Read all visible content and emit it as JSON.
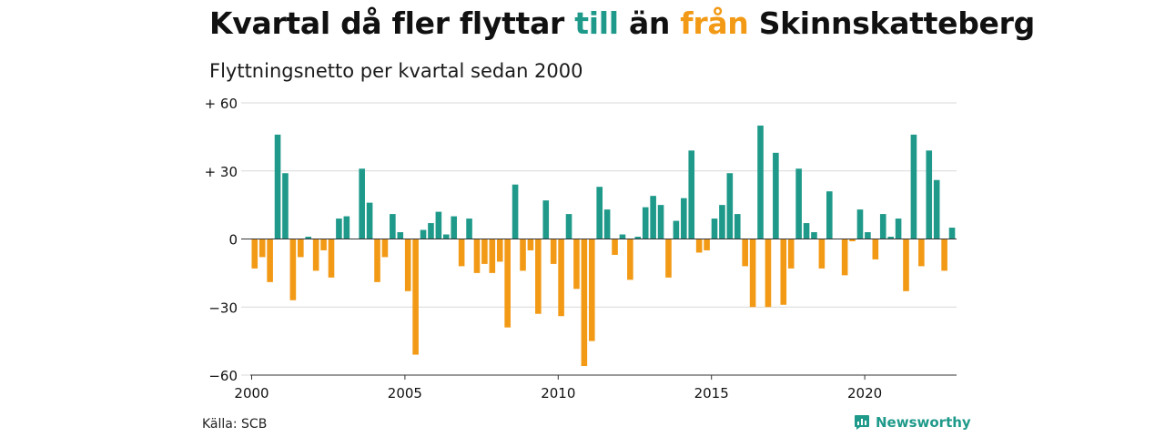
{
  "title": {
    "part1": "Kvartal då fler flyttar ",
    "highlight_pos": "till",
    "part2": " än ",
    "highlight_neg": "från",
    "part3": " Skinnskatteberg"
  },
  "subtitle": "Flyttningsnetto per kvartal sedan 2000",
  "source": "Källa: SCB",
  "brand": {
    "label": "Newsworthy",
    "icon": "newsworthy-logo-icon"
  },
  "colors": {
    "positive": "#1f9a8a",
    "negative": "#f29a16",
    "grid": "#d9d9d9",
    "axis": "#333333"
  },
  "chart_data": {
    "type": "bar",
    "title": "Kvartal då fler flyttar till än från Skinnskatteberg",
    "subtitle": "Flyttningsnetto per kvartal sedan 2000",
    "xlabel": "",
    "ylabel": "",
    "x_start": 2000,
    "quarters_per_year": 4,
    "xticks": [
      "2000",
      "2005",
      "2010",
      "2015",
      "2020"
    ],
    "yticks": [
      "+ 60",
      "+ 30",
      "0",
      "−30",
      "−60"
    ],
    "ylim": [
      -60,
      60
    ],
    "grid": true,
    "values": [
      -13,
      -8,
      -19,
      46,
      29,
      -27,
      -8,
      1,
      -14,
      -5,
      -17,
      9,
      10,
      0,
      31,
      16,
      -19,
      -8,
      11,
      3,
      -23,
      -51,
      4,
      7,
      12,
      2,
      10,
      -12,
      9,
      -15,
      -11,
      -15,
      -10,
      -39,
      24,
      -14,
      -5,
      -33,
      17,
      -11,
      -34,
      11,
      -22,
      -56,
      -45,
      23,
      13,
      -7,
      2,
      -18,
      1,
      14,
      19,
      15,
      -17,
      8,
      18,
      39,
      -6,
      -5,
      9,
      15,
      29,
      11,
      -12,
      -30,
      50,
      -30,
      38,
      -29,
      -13,
      31,
      7,
      3,
      -13,
      21,
      0,
      -16,
      -1,
      13,
      3,
      -9,
      11,
      1,
      9,
      -23,
      46,
      -12,
      39,
      26,
      -14,
      5
    ]
  }
}
